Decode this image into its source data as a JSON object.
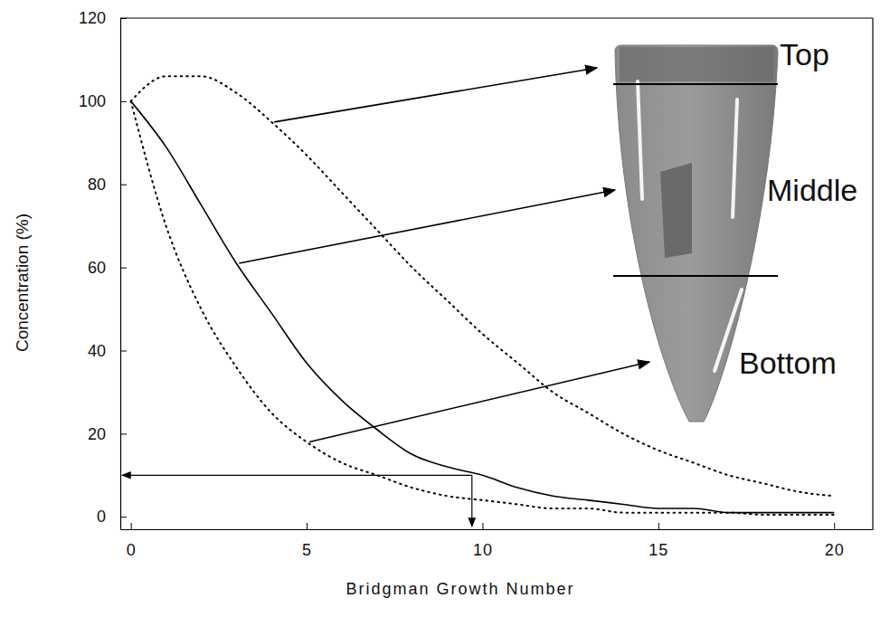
{
  "chart_data": {
    "type": "line",
    "x_label": "Bridgman Growth Number",
    "y_label": "Concentration (%)",
    "x": [
      0,
      1,
      2,
      3,
      4,
      5,
      6,
      7,
      8,
      9,
      10,
      11,
      12,
      13,
      14,
      15,
      16,
      17,
      18,
      19,
      20
    ],
    "series": [
      {
        "name": "Top",
        "color": "#000000",
        "line_style": "dotted",
        "values": [
          100,
          106,
          106,
          102,
          95,
          87,
          78,
          69,
          60,
          52,
          44,
          37,
          30,
          25,
          20,
          16,
          13,
          10,
          8,
          6,
          5
        ]
      },
      {
        "name": "Middle",
        "color": "#000000",
        "line_style": "solid",
        "values": [
          100,
          89,
          75,
          61,
          49,
          37,
          28,
          21,
          15,
          12,
          10,
          7,
          5,
          4,
          3,
          2,
          2,
          1,
          1,
          1,
          1
        ]
      },
      {
        "name": "Bottom",
        "color": "#000000",
        "line_style": "dotted",
        "values": [
          100,
          70,
          50,
          36,
          25,
          18,
          13,
          10,
          7,
          5,
          4,
          3,
          2,
          2,
          1,
          1,
          1,
          1,
          0.5,
          0.5,
          0.5
        ]
      }
    ],
    "guide": {
      "x": 9.7,
      "y": 10
    },
    "xlim": [
      -0.3,
      21.1
    ],
    "ylim": [
      -3,
      120
    ],
    "xticks": [
      0,
      5,
      10,
      15,
      20
    ],
    "yticks": [
      0,
      20,
      40,
      60,
      80,
      100,
      120
    ],
    "grid": false
  }
}
